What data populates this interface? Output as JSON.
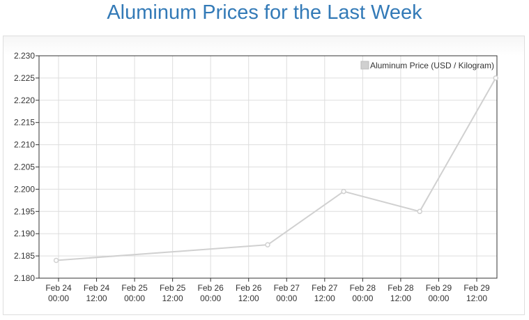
{
  "title": "Aluminum Prices for the Last Week",
  "colors": {
    "title": "#337ab7",
    "line": "#d0d0d0",
    "grid": "#dddddd",
    "axis": "#333333",
    "legend_swatch": "#d0d0d0"
  },
  "chart_data": {
    "type": "line",
    "title": "Aluminum Prices for the Last Week",
    "xlabel": "",
    "ylabel": "",
    "ylim": [
      2.18,
      2.23
    ],
    "xlim": [
      "2024-02-24 00:00",
      "2024-02-29 12:00"
    ],
    "y_ticks": [
      "2.230",
      "2.225",
      "2.220",
      "2.215",
      "2.210",
      "2.205",
      "2.200",
      "2.195",
      "2.190",
      "2.185",
      "2.180"
    ],
    "x_ticks": [
      {
        "date": "Feb 24",
        "time": "00:00"
      },
      {
        "date": "Feb 24",
        "time": "12:00"
      },
      {
        "date": "Feb 25",
        "time": "00:00"
      },
      {
        "date": "Feb 25",
        "time": "12:00"
      },
      {
        "date": "Feb 26",
        "time": "00:00"
      },
      {
        "date": "Feb 26",
        "time": "12:00"
      },
      {
        "date": "Feb 27",
        "time": "00:00"
      },
      {
        "date": "Feb 27",
        "time": "12:00"
      },
      {
        "date": "Feb 28",
        "time": "00:00"
      },
      {
        "date": "Feb 28",
        "time": "12:00"
      },
      {
        "date": "Feb 29",
        "time": "00:00"
      },
      {
        "date": "Feb 29",
        "time": "12:00"
      }
    ],
    "grid": true,
    "legend_position": "top-right",
    "series": [
      {
        "name": "Aluminum Price (USD / Kilogram)",
        "points": [
          {
            "x": "2024-02-23 23:15",
            "y": 2.184
          },
          {
            "x": "2024-02-26 18:00",
            "y": 2.1875
          },
          {
            "x": "2024-02-27 18:00",
            "y": 2.1995
          },
          {
            "x": "2024-02-28 18:00",
            "y": 2.195
          },
          {
            "x": "2024-02-29 18:00",
            "y": 2.225
          }
        ]
      }
    ]
  }
}
